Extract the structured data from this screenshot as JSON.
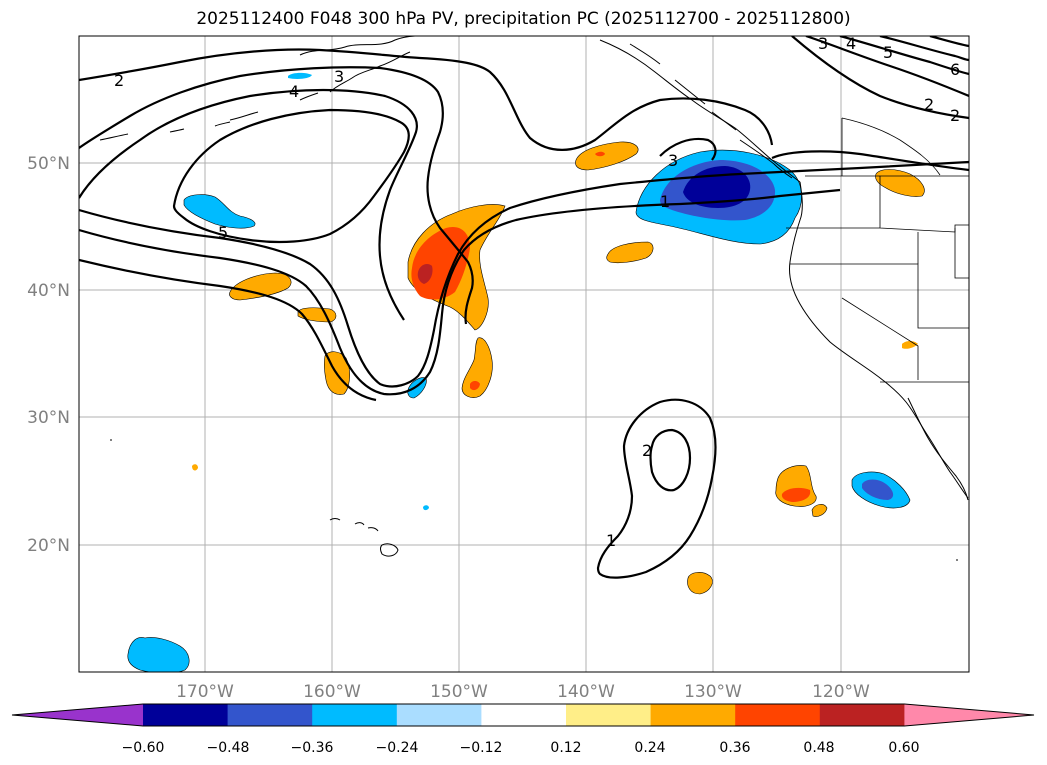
{
  "title": "2025112400 F048 300 hPa PV, precipitation PC (2025112700 - 2025112800)",
  "lat_labels": [
    "50°N",
    "40°N",
    "30°N",
    "20°N"
  ],
  "lon_labels": [
    "170°W",
    "160°W",
    "150°W",
    "140°W",
    "130°W",
    "120°W"
  ],
  "contour_labels": [
    "2",
    "3",
    "4",
    "5",
    "1",
    "3",
    "2",
    "3",
    "4",
    "5",
    "6",
    "2",
    "2",
    "1"
  ],
  "colorbar": {
    "ticks": [
      "−0.60",
      "−0.48",
      "−0.36",
      "−0.24",
      "−0.12",
      "0.12",
      "0.24",
      "0.36",
      "0.48",
      "0.60"
    ],
    "colors": [
      "#9933cc",
      "#000099",
      "#3355cc",
      "#00bbff",
      "#aaddff",
      "#ffffff",
      "#ffee88",
      "#ffaa00",
      "#ff4400",
      "#bb2222",
      "#ff88aa"
    ]
  },
  "colors": {
    "dark_blue": "#000099",
    "mid_blue": "#3355cc",
    "cyan": "#00bbff",
    "orange": "#ffaa00",
    "red_orange": "#ff4400",
    "dark_red": "#bb2222"
  }
}
